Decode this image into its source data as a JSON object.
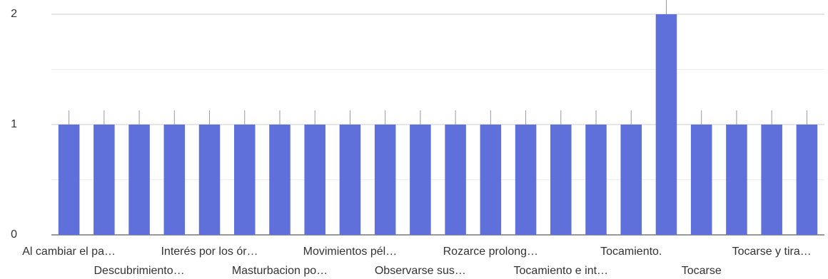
{
  "chart_data": {
    "type": "bar",
    "categories": [
      "Al cambiar el pa…",
      null,
      "Descubrimiento…",
      null,
      "Interés por los ór…",
      null,
      "Masturbacion po…",
      null,
      "Movimientos pél…",
      null,
      "Observarse sus…",
      null,
      "Rozarce prolong…",
      null,
      "Tocamiento e int…",
      null,
      "Tocamiento.",
      null,
      "Tocarse",
      null,
      "Tocarse y tira…",
      null
    ],
    "values": [
      1,
      1,
      1,
      1,
      1,
      1,
      1,
      1,
      1,
      1,
      1,
      1,
      1,
      1,
      1,
      1,
      1,
      2,
      1,
      1,
      1,
      1
    ],
    "color": "#6070db",
    "ylim": [
      0,
      2
    ],
    "yticks": [
      0,
      1,
      2
    ],
    "minor_yticks": [
      0.5,
      1.5
    ],
    "grid": true
  }
}
